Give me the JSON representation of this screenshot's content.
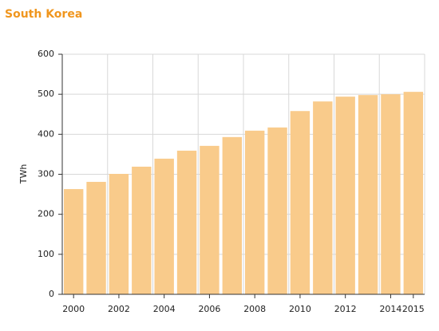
{
  "chart_data": {
    "type": "bar",
    "title": "South Korea",
    "y_label": "TWh",
    "categories": [
      "2000",
      null,
      "2002",
      null,
      "2004",
      null,
      "2006",
      null,
      "2008",
      null,
      "2010",
      null,
      "2012",
      null,
      "2014",
      "2015"
    ],
    "values": [
      263,
      281,
      301,
      319,
      339,
      359,
      371,
      393,
      409,
      417,
      458,
      482,
      494,
      498,
      500,
      506
    ],
    "color": "#f9cb8b",
    "ylim": [
      0,
      600
    ],
    "yticks": [
      0,
      100,
      200,
      300,
      400,
      500,
      600
    ],
    "grid": true
  }
}
